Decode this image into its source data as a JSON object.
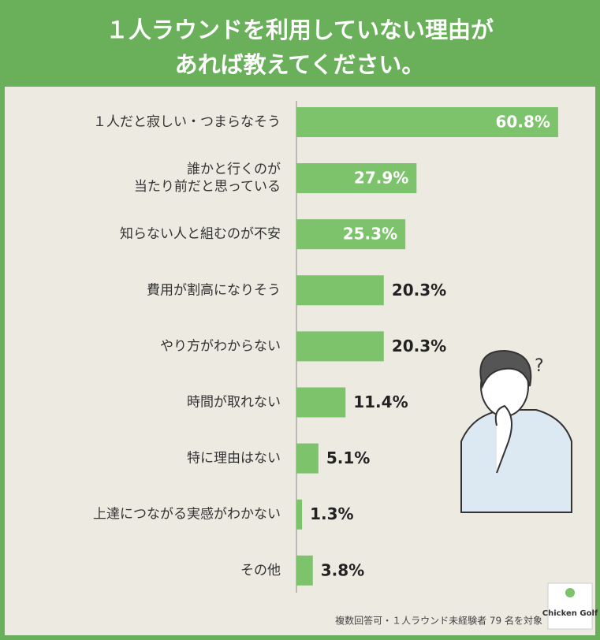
{
  "chart_data": {
    "type": "bar",
    "orientation": "horizontal",
    "title": [
      "１人ラウンドを利用していない理由が",
      "あれば教えてください。"
    ],
    "categories": [
      "１人だと寂しい・つまらなそう",
      "誰かと行くのが\n当たり前だと思っている",
      "知らない人と組むのが不安",
      "費用が割高になりそう",
      "やり方がわからない",
      "時間が取れない",
      "特に理由はない",
      "上達につながる実感がわかない",
      "その他"
    ],
    "values": [
      60.8,
      27.9,
      25.3,
      20.3,
      20.3,
      11.4,
      5.1,
      1.3,
      3.8
    ],
    "value_labels": [
      "60.8%",
      "27.9%",
      "25.3%",
      "20.3%",
      "20.3%",
      "11.4%",
      "5.1%",
      "1.3%",
      "3.8%"
    ],
    "color": "#7dc36b",
    "xlim": [
      0,
      61
    ],
    "footnote": "複数回答可・１人ラウンド未経験者 79 名を対象",
    "logo": "Chicken Golf"
  }
}
